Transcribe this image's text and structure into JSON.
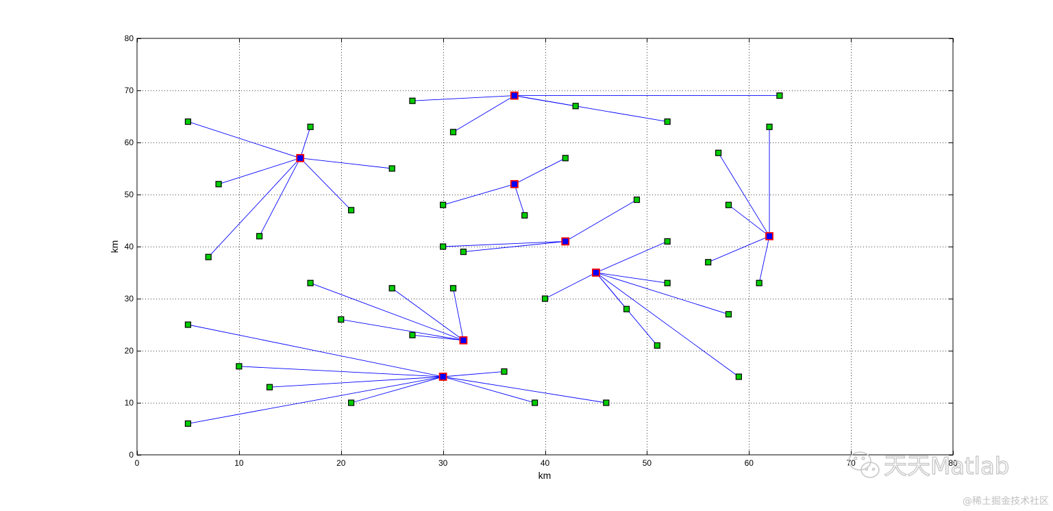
{
  "chart_data": {
    "type": "scatter",
    "xlabel": "km",
    "ylabel": "km",
    "xlim": [
      0,
      80
    ],
    "ylim": [
      0,
      80
    ],
    "xticks": [
      0,
      10,
      20,
      30,
      40,
      50,
      60,
      70,
      80
    ],
    "yticks": [
      0,
      10,
      20,
      30,
      40,
      50,
      60,
      70,
      80
    ],
    "grid": true,
    "grid_style": "dotted",
    "colors": {
      "line": "#0000ff",
      "node_fill": "#00cc00",
      "center_fill": "#0000ff",
      "center_edge": "#ff0000"
    },
    "clusters": [
      {
        "center": [
          37,
          69
        ],
        "members": [
          [
            27,
            68
          ],
          [
            31,
            62
          ],
          [
            43,
            67
          ],
          [
            52,
            64
          ],
          [
            63,
            69
          ]
        ]
      },
      {
        "center": [
          16,
          57
        ],
        "members": [
          [
            5,
            64
          ],
          [
            17,
            63
          ],
          [
            8,
            52
          ],
          [
            25,
            55
          ],
          [
            21,
            47
          ],
          [
            12,
            42
          ],
          [
            7,
            38
          ]
        ]
      },
      {
        "center": [
          37,
          52
        ],
        "members": [
          [
            42,
            57
          ],
          [
            30,
            48
          ],
          [
            38,
            46
          ]
        ]
      },
      {
        "center": [
          42,
          41
        ],
        "members": [
          [
            49,
            49
          ],
          [
            30,
            40
          ],
          [
            32,
            39
          ]
        ]
      },
      {
        "center": [
          62,
          42
        ],
        "members": [
          [
            62,
            63
          ],
          [
            57,
            58
          ],
          [
            58,
            48
          ],
          [
            56,
            37
          ],
          [
            61,
            33
          ]
        ]
      },
      {
        "center": [
          45,
          35
        ],
        "members": [
          [
            52,
            41
          ],
          [
            52,
            33
          ],
          [
            40,
            30
          ],
          [
            48,
            28
          ],
          [
            58,
            27
          ],
          [
            51,
            21
          ],
          [
            59,
            15
          ]
        ]
      },
      {
        "center": [
          32,
          22
        ],
        "members": [
          [
            17,
            33
          ],
          [
            25,
            32
          ],
          [
            31,
            32
          ],
          [
            20,
            26
          ],
          [
            27,
            23
          ]
        ]
      },
      {
        "center": [
          30,
          15
        ],
        "members": [
          [
            5,
            25
          ],
          [
            10,
            17
          ],
          [
            13,
            13
          ],
          [
            21,
            10
          ],
          [
            5,
            6
          ],
          [
            36,
            16
          ],
          [
            39,
            10
          ],
          [
            46,
            10
          ]
        ]
      }
    ]
  },
  "watermark": {
    "title": "天天Matlab",
    "credit": "@稀土掘金技术社区"
  }
}
